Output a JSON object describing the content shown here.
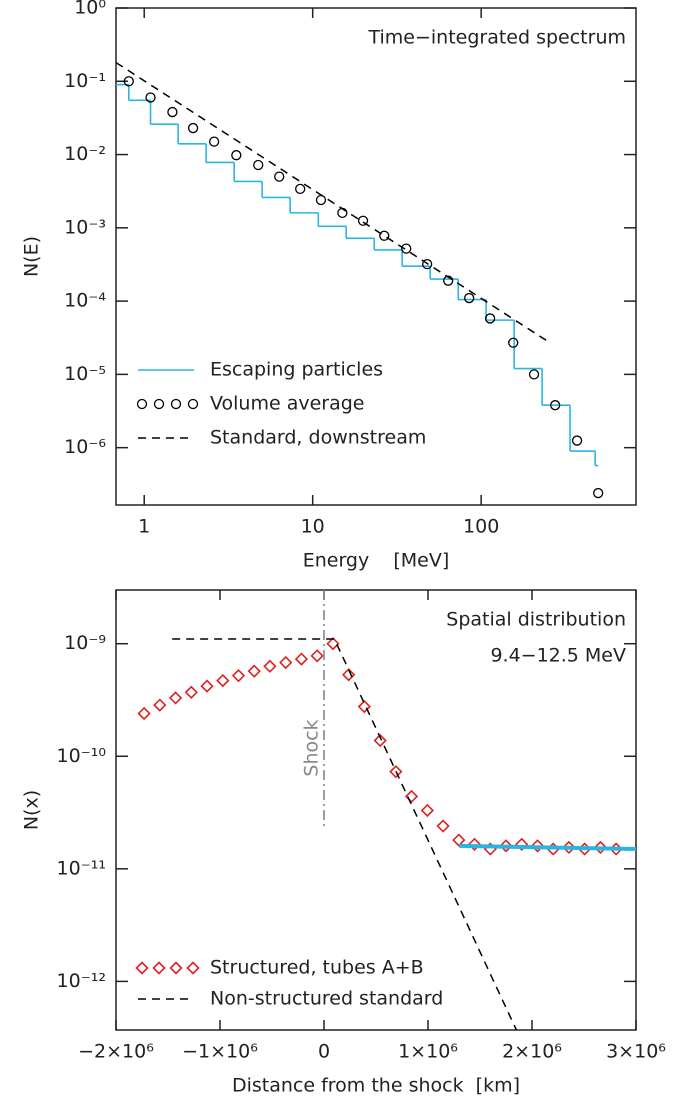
{
  "chart_data": [
    {
      "type": "line",
      "xscale": "log",
      "yscale": "log",
      "xlim": [
        0.68,
        830
      ],
      "ylim": [
        1.65e-07,
        1
      ],
      "xticks": [
        1,
        10,
        100
      ],
      "yticks": [
        {
          "value": 1,
          "label": "10⁰"
        },
        {
          "value": 0.1,
          "label": "10⁻¹"
        },
        {
          "value": 0.01,
          "label": "10⁻²"
        },
        {
          "value": 0.001,
          "label": "10⁻³"
        },
        {
          "value": 0.0001,
          "label": "10⁻⁴"
        },
        {
          "value": 1e-05,
          "label": "10⁻⁵"
        },
        {
          "value": 1e-06,
          "label": "10⁻⁶"
        }
      ],
      "xlabel": "Energy    [MeV]",
      "ylabel": "N(E)",
      "annotations": [
        "Time−integrated spectrum"
      ],
      "legend": "lower left",
      "series": [
        {
          "name": "Escaping particles",
          "mode": "step",
          "color": "#29b5e0",
          "linestyle": "solid",
          "bins": [
            0.68,
            0.81,
            1.09,
            1.59,
            2.33,
            3.42,
            5.01,
            7.35,
            10.8,
            15.8,
            23.2,
            34.0,
            49.8,
            73.1,
            107,
            157,
            230,
            337,
            475,
            495
          ],
          "values": [
            0.09,
            0.055,
            0.026,
            0.014,
            0.0078,
            0.0043,
            0.0026,
            0.0016,
            0.00105,
            0.00072,
            0.0005,
            0.0003,
            0.0002,
            0.000105,
            5.5e-05,
            1.2e-05,
            3.8e-06,
            9e-07,
            5.7e-07
          ]
        },
        {
          "name": "Volume average",
          "mode": "markers",
          "marker": "circle",
          "color": "#000000",
          "x": [
            0.81,
            1.09,
            1.47,
            1.95,
            2.6,
            3.52,
            4.75,
            6.33,
            8.43,
            11.2,
            15.0,
            19.9,
            26.6,
            35.9,
            47.8,
            63.7,
            84.9,
            113,
            155,
            206,
            275,
            371,
            495
          ],
          "values": [
            0.1,
            0.06,
            0.038,
            0.023,
            0.015,
            0.0098,
            0.0072,
            0.005,
            0.0034,
            0.0024,
            0.0016,
            0.00125,
            0.00078,
            0.00052,
            0.00032,
            0.00019,
            0.00011,
            5.8e-05,
            2.7e-05,
            1e-05,
            3.8e-06,
            1.25e-06,
            2.4e-07
          ]
        },
        {
          "name": "Standard, downstream",
          "mode": "line",
          "color": "#000000",
          "linestyle": "dashed",
          "x": [
            0.68,
            250
          ],
          "values": [
            0.18,
            2.8e-05
          ]
        }
      ]
    },
    {
      "type": "line",
      "xscale": "linear",
      "yscale": "log",
      "xlim": [
        -2000000,
        3000000
      ],
      "ylim": [
        3.7e-13,
        3e-09
      ],
      "xticks": [
        {
          "value": -2000000,
          "label": "−2×10⁶"
        },
        {
          "value": -1000000,
          "label": "−1×10⁶"
        },
        0,
        {
          "value": 1000000,
          "label": "1×10⁶"
        },
        {
          "value": 2000000,
          "label": "2×10⁶"
        },
        {
          "value": 3000000,
          "label": "3×10⁶"
        }
      ],
      "yticks": [
        {
          "value": 1e-09,
          "label": "10⁻⁹"
        },
        {
          "value": 1e-10,
          "label": "10⁻¹⁰"
        },
        {
          "value": 1e-11,
          "label": "10⁻¹¹"
        },
        {
          "value": 1e-12,
          "label": "10⁻¹²"
        }
      ],
      "xlabel": "Distance from the shock  [km]",
      "ylabel": "N(x)",
      "annotations": [
        "Spatial distribution",
        "9.4−12.5 MeV"
      ],
      "legend": "lower left",
      "shock": {
        "x": 0,
        "ymin": 2.4e-11,
        "label": "Shock",
        "color": "#888888"
      },
      "series": [
        {
          "name": "Structured, tubes A+B",
          "mode": "markers",
          "marker": "diamond",
          "color": "#e0201e",
          "x": [
            -1730000,
            -1579000,
            -1427000,
            -1276000,
            -1125000,
            -973000,
            -822000,
            -671000,
            -520000,
            -368000,
            -217000,
            -66000,
            86000,
            237000,
            388000,
            540000,
            691000,
            842000,
            994000,
            1145000,
            1296000,
            1447000,
            1599000,
            1750000,
            1901000,
            2053000,
            2204000,
            2355000,
            2506000,
            2658000,
            2809000
          ],
          "values": [
            2.4e-10,
            2.85e-10,
            3.3e-10,
            3.7e-10,
            4.2e-10,
            4.7e-10,
            5.2e-10,
            5.7e-10,
            6.3e-10,
            6.8e-10,
            7.3e-10,
            7.8e-10,
            1e-09,
            5.3e-10,
            2.76e-10,
            1.38e-10,
            7.3e-11,
            4.4e-11,
            3.3e-11,
            2.4e-11,
            1.8e-11,
            1.65e-11,
            1.5e-11,
            1.6e-11,
            1.65e-11,
            1.6e-11,
            1.5e-11,
            1.55e-11,
            1.5e-11,
            1.55e-11,
            1.5e-11
          ]
        },
        {
          "name": "Non-structured standard",
          "mode": "line",
          "color": "#000000",
          "linestyle": "dashed",
          "x": [
            -1460000,
            100000,
            1850000
          ],
          "values": [
            1.1e-09,
            1.1e-09,
            3.7e-13
          ]
        },
        {
          "mode": "line",
          "color": "#29b5e0",
          "linestyle": "solid",
          "linewidth": 4,
          "x": [
            1300000,
            3000000
          ],
          "values": [
            1.6e-11,
            1.5e-11
          ]
        }
      ]
    }
  ]
}
